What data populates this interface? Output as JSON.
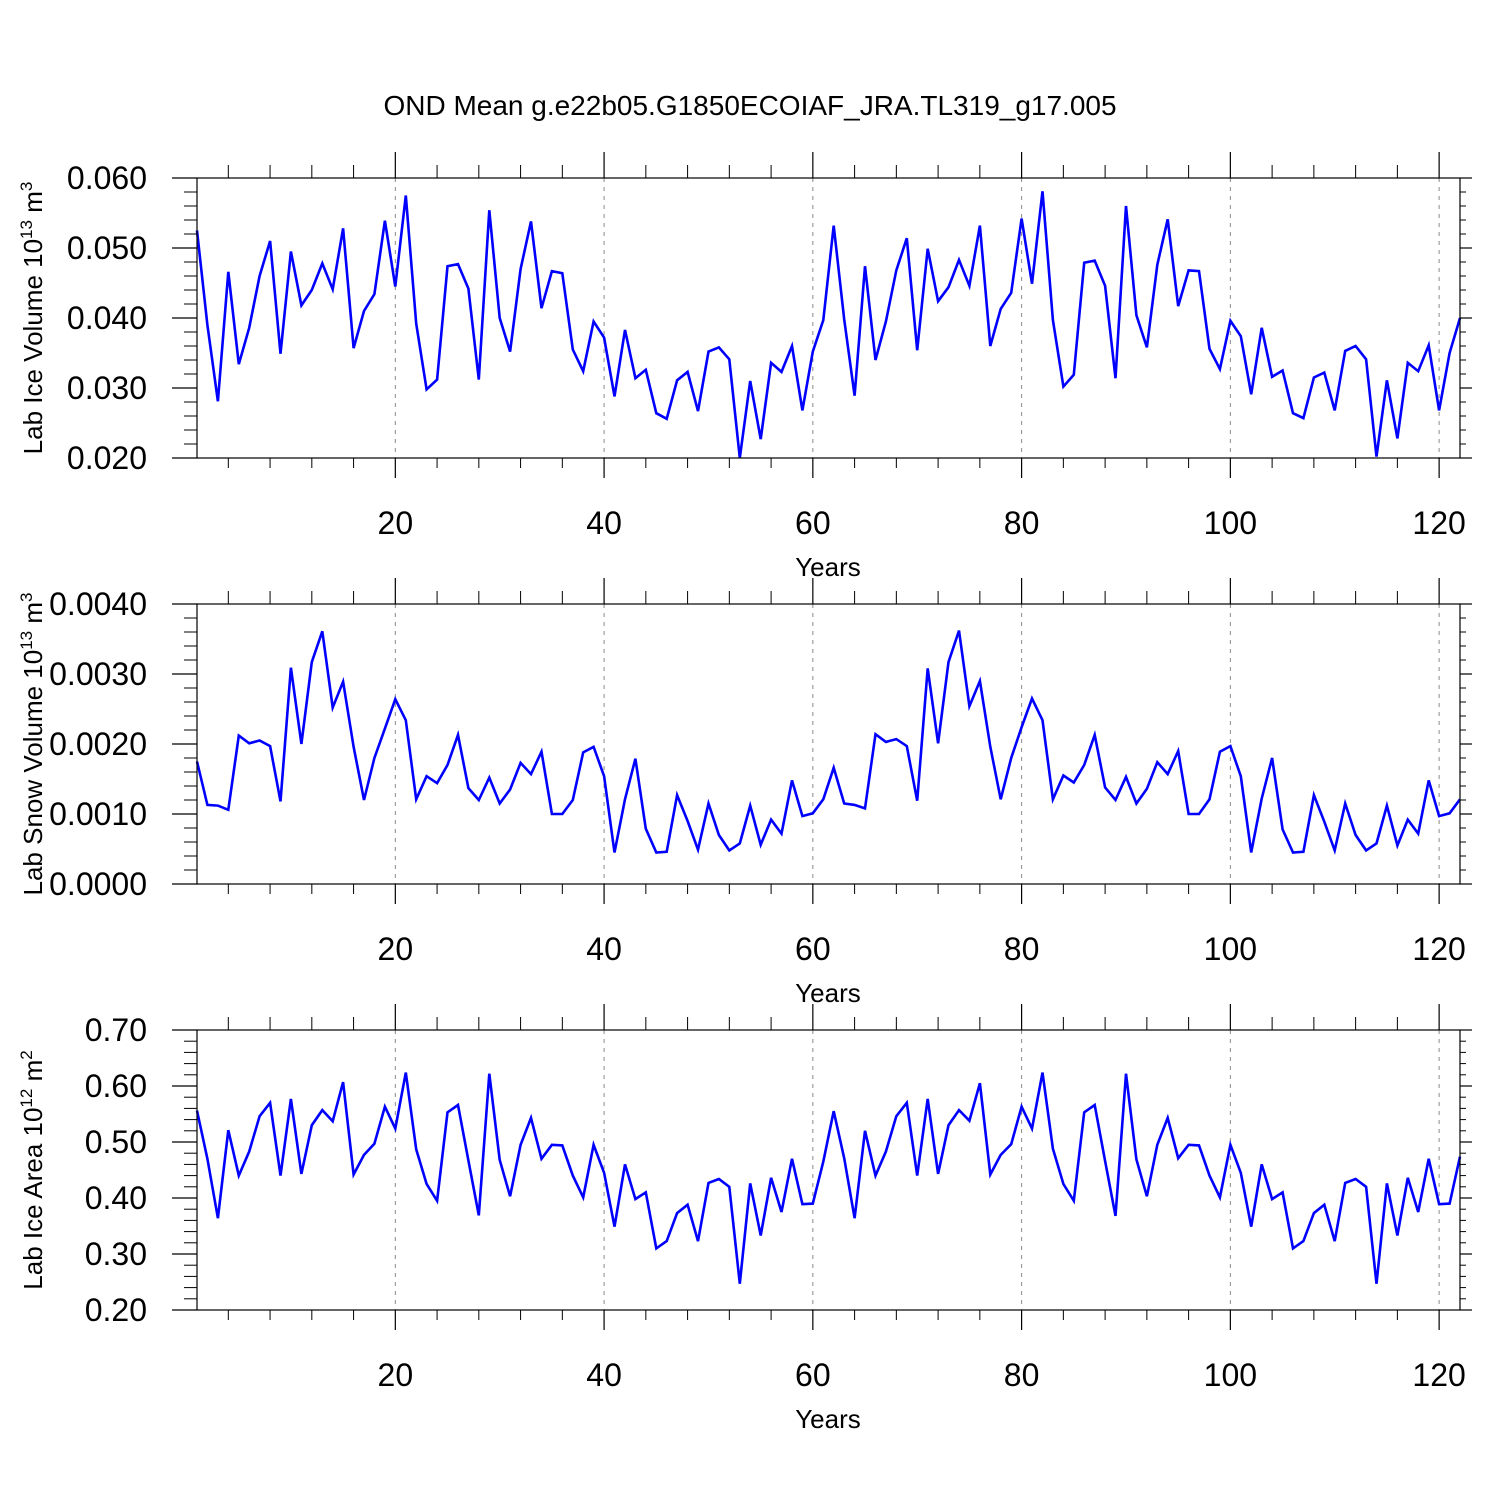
{
  "title": "OND Mean g.e22b05.G1850ECOIAF_JRA.TL319_g17.005",
  "line_color": "#0000ff",
  "chart_data": [
    {
      "type": "line",
      "ylabel": {
        "text": "Lab Ice Volume 10",
        "exp": "13",
        "unit": " m",
        "unit_exp": "3"
      },
      "xlabel": "Years",
      "xlim": [
        1,
        122
      ],
      "ylim": [
        0.02,
        0.06
      ],
      "xticks": [
        20,
        40,
        60,
        80,
        100,
        120
      ],
      "xtick_labels": [
        "20",
        "40",
        "60",
        "80",
        "100",
        "120"
      ],
      "yticks": [
        0.02,
        0.03,
        0.04,
        0.05,
        0.06
      ],
      "ytick_labels": [
        "0.020",
        "0.030",
        "0.040",
        "0.050",
        "0.060"
      ],
      "y_minor_step": 0.002,
      "grid_x": [
        20,
        40,
        60,
        80,
        100,
        120
      ],
      "x": [
        1,
        2,
        3,
        4,
        5,
        6,
        7,
        8,
        9,
        10,
        11,
        12,
        13,
        14,
        15,
        16,
        17,
        18,
        19,
        20,
        21,
        22,
        23,
        24,
        25,
        26,
        27,
        28,
        29,
        30,
        31,
        32,
        33,
        34,
        35,
        36,
        37,
        38,
        39,
        40,
        41,
        42,
        43,
        44,
        45,
        46,
        47,
        48,
        49,
        50,
        51,
        52,
        53,
        54,
        55,
        56,
        57,
        58,
        59,
        60,
        61,
        62,
        63,
        64,
        65,
        66,
        67,
        68,
        69,
        70,
        71,
        72,
        73,
        74,
        75,
        76,
        77,
        78,
        79,
        80,
        81,
        82,
        83,
        84,
        85,
        86,
        87,
        88,
        89,
        90,
        91,
        92,
        93,
        94,
        95,
        96,
        97,
        98,
        99,
        100,
        101,
        102,
        103,
        104,
        105,
        106,
        107,
        108,
        109,
        110,
        111,
        112,
        113,
        114,
        115,
        116,
        117,
        118,
        119,
        120,
        121,
        122
      ],
      "values": [
        0.0525,
        0.039,
        0.0281,
        0.0466,
        0.0334,
        0.0386,
        0.046,
        0.051,
        0.0349,
        0.0495,
        0.0418,
        0.044,
        0.0478,
        0.0441,
        0.0528,
        0.0357,
        0.041,
        0.0434,
        0.0539,
        0.0445,
        0.0575,
        0.0392,
        0.0298,
        0.0312,
        0.0474,
        0.0477,
        0.0442,
        0.0312,
        0.0554,
        0.04,
        0.0352,
        0.047,
        0.0538,
        0.0414,
        0.0467,
        0.0464,
        0.0355,
        0.0324,
        0.0395,
        0.0372,
        0.0288,
        0.0383,
        0.0314,
        0.0326,
        0.0264,
        0.0256,
        0.0311,
        0.0323,
        0.0267,
        0.0352,
        0.0358,
        0.0341,
        0.02,
        0.031,
        0.0227,
        0.0336,
        0.0323,
        0.036,
        0.0268,
        0.0352,
        0.0397,
        0.0532,
        0.0398,
        0.0289,
        0.0474,
        0.034,
        0.0395,
        0.0468,
        0.0514,
        0.0354,
        0.0499,
        0.0424,
        0.0444,
        0.0483,
        0.0446,
        0.0532,
        0.036,
        0.0413,
        0.0436,
        0.0542,
        0.0449,
        0.0581,
        0.0397,
        0.0302,
        0.0319,
        0.0479,
        0.0482,
        0.0446,
        0.0314,
        0.056,
        0.0404,
        0.0358,
        0.0476,
        0.0541,
        0.0417,
        0.0468,
        0.0467,
        0.0356,
        0.0327,
        0.0396,
        0.0374,
        0.0291,
        0.0386,
        0.0316,
        0.0325,
        0.0264,
        0.0257,
        0.0315,
        0.0322,
        0.0268,
        0.0353,
        0.036,
        0.0341,
        0.0202,
        0.0311,
        0.0228,
        0.0336,
        0.0324,
        0.0361,
        0.0268,
        0.035,
        0.04
      ]
    },
    {
      "type": "line",
      "ylabel": {
        "text": "Lab Snow Volume 10",
        "exp": "13",
        "unit": " m",
        "unit_exp": "3"
      },
      "xlabel": "Years",
      "xlim": [
        1,
        122
      ],
      "ylim": [
        0.0,
        0.004
      ],
      "xticks": [
        20,
        40,
        60,
        80,
        100,
        120
      ],
      "xtick_labels": [
        "20",
        "40",
        "60",
        "80",
        "100",
        "120"
      ],
      "yticks": [
        0.0,
        0.001,
        0.002,
        0.003,
        0.004
      ],
      "ytick_labels": [
        "0.0000",
        "0.0010",
        "0.0020",
        "0.0030",
        "0.0040"
      ],
      "y_minor_step": 0.0002,
      "grid_x": [
        20,
        40,
        60,
        80,
        100,
        120
      ],
      "x": [
        1,
        2,
        3,
        4,
        5,
        6,
        7,
        8,
        9,
        10,
        11,
        12,
        13,
        14,
        15,
        16,
        17,
        18,
        19,
        20,
        21,
        22,
        23,
        24,
        25,
        26,
        27,
        28,
        29,
        30,
        31,
        32,
        33,
        34,
        35,
        36,
        37,
        38,
        39,
        40,
        41,
        42,
        43,
        44,
        45,
        46,
        47,
        48,
        49,
        50,
        51,
        52,
        53,
        54,
        55,
        56,
        57,
        58,
        59,
        60,
        61,
        62,
        63,
        64,
        65,
        66,
        67,
        68,
        69,
        70,
        71,
        72,
        73,
        74,
        75,
        76,
        77,
        78,
        79,
        80,
        81,
        82,
        83,
        84,
        85,
        86,
        87,
        88,
        89,
        90,
        91,
        92,
        93,
        94,
        95,
        96,
        97,
        98,
        99,
        100,
        101,
        102,
        103,
        104,
        105,
        106,
        107,
        108,
        109,
        110,
        111,
        112,
        113,
        114,
        115,
        116,
        117,
        118,
        119,
        120,
        121,
        122
      ],
      "values": [
        0.00175,
        0.00113,
        0.00112,
        0.00106,
        0.00212,
        0.00201,
        0.00205,
        0.00197,
        0.00118,
        0.00309,
        0.002,
        0.00317,
        0.00361,
        0.00252,
        0.00289,
        0.00196,
        0.0012,
        0.0018,
        0.00222,
        0.00264,
        0.00234,
        0.00121,
        0.00154,
        0.00144,
        0.0017,
        0.00213,
        0.00137,
        0.0012,
        0.00152,
        0.00115,
        0.00135,
        0.00173,
        0.00157,
        0.00189,
        0.001,
        0.001,
        0.0012,
        0.00188,
        0.00196,
        0.00154,
        0.00045,
        0.00121,
        0.00179,
        0.00079,
        0.00045,
        0.00046,
        0.00127,
        0.0009,
        0.00049,
        0.00115,
        0.0007,
        0.00048,
        0.00058,
        0.00112,
        0.00056,
        0.00092,
        0.00072,
        0.00148,
        0.00097,
        0.00101,
        0.00121,
        0.00166,
        0.00115,
        0.00113,
        0.00108,
        0.00214,
        0.00203,
        0.00207,
        0.00197,
        0.00119,
        0.00308,
        0.00201,
        0.00317,
        0.00362,
        0.00254,
        0.0029,
        0.00196,
        0.00121,
        0.0018,
        0.00224,
        0.00265,
        0.00234,
        0.00121,
        0.00155,
        0.00145,
        0.0017,
        0.00213,
        0.00138,
        0.0012,
        0.00153,
        0.00115,
        0.00136,
        0.00174,
        0.00157,
        0.0019,
        0.001,
        0.001,
        0.00121,
        0.00189,
        0.00197,
        0.00154,
        0.00045,
        0.00122,
        0.0018,
        0.00078,
        0.00045,
        0.00046,
        0.00127,
        0.00089,
        0.00048,
        0.00115,
        0.0007,
        0.00048,
        0.00058,
        0.00112,
        0.00055,
        0.00092,
        0.00072,
        0.00148,
        0.00097,
        0.00101,
        0.00121
      ]
    },
    {
      "type": "line",
      "ylabel": {
        "text": "Lab Ice Area 10",
        "exp": "12",
        "unit": " m",
        "unit_exp": "2"
      },
      "xlabel": "Years",
      "xlim": [
        1,
        122
      ],
      "ylim": [
        0.2,
        0.7
      ],
      "xticks": [
        20,
        40,
        60,
        80,
        100,
        120
      ],
      "xtick_labels": [
        "20",
        "40",
        "60",
        "80",
        "100",
        "120"
      ],
      "yticks": [
        0.2,
        0.3,
        0.4,
        0.5,
        0.6,
        0.7
      ],
      "ytick_labels": [
        "0.20",
        "0.30",
        "0.40",
        "0.50",
        "0.60",
        "0.70"
      ],
      "y_minor_step": 0.02,
      "grid_x": [
        20,
        40,
        60,
        80,
        100,
        120
      ],
      "x": [
        1,
        2,
        3,
        4,
        5,
        6,
        7,
        8,
        9,
        10,
        11,
        12,
        13,
        14,
        15,
        16,
        17,
        18,
        19,
        20,
        21,
        22,
        23,
        24,
        25,
        26,
        27,
        28,
        29,
        30,
        31,
        32,
        33,
        34,
        35,
        36,
        37,
        38,
        39,
        40,
        41,
        42,
        43,
        44,
        45,
        46,
        47,
        48,
        49,
        50,
        51,
        52,
        53,
        54,
        55,
        56,
        57,
        58,
        59,
        60,
        61,
        62,
        63,
        64,
        65,
        66,
        67,
        68,
        69,
        70,
        71,
        72,
        73,
        74,
        75,
        76,
        77,
        78,
        79,
        80,
        81,
        82,
        83,
        84,
        85,
        86,
        87,
        88,
        89,
        90,
        91,
        92,
        93,
        94,
        95,
        96,
        97,
        98,
        99,
        100,
        101,
        102,
        103,
        104,
        105,
        106,
        107,
        108,
        109,
        110,
        111,
        112,
        113,
        114,
        115,
        116,
        117,
        118,
        119,
        120,
        121,
        122
      ],
      "values": [
        0.556,
        0.47,
        0.364,
        0.521,
        0.44,
        0.483,
        0.546,
        0.57,
        0.44,
        0.577,
        0.443,
        0.53,
        0.557,
        0.537,
        0.607,
        0.442,
        0.477,
        0.497,
        0.563,
        0.524,
        0.624,
        0.487,
        0.425,
        0.395,
        0.553,
        0.566,
        0.467,
        0.369,
        0.622,
        0.468,
        0.403,
        0.495,
        0.543,
        0.47,
        0.495,
        0.494,
        0.44,
        0.401,
        0.495,
        0.445,
        0.349,
        0.46,
        0.398,
        0.41,
        0.31,
        0.323,
        0.373,
        0.388,
        0.323,
        0.427,
        0.434,
        0.42,
        0.247,
        0.426,
        0.333,
        0.436,
        0.375,
        0.47,
        0.389,
        0.39,
        0.465,
        0.555,
        0.471,
        0.364,
        0.52,
        0.44,
        0.483,
        0.546,
        0.57,
        0.44,
        0.577,
        0.443,
        0.53,
        0.557,
        0.538,
        0.605,
        0.442,
        0.477,
        0.496,
        0.563,
        0.524,
        0.624,
        0.488,
        0.425,
        0.395,
        0.553,
        0.566,
        0.466,
        0.368,
        0.622,
        0.469,
        0.403,
        0.495,
        0.543,
        0.471,
        0.495,
        0.494,
        0.44,
        0.401,
        0.495,
        0.445,
        0.349,
        0.46,
        0.398,
        0.41,
        0.31,
        0.323,
        0.373,
        0.388,
        0.323,
        0.427,
        0.434,
        0.42,
        0.247,
        0.426,
        0.333,
        0.436,
        0.375,
        0.47,
        0.389,
        0.39,
        0.474
      ]
    }
  ]
}
